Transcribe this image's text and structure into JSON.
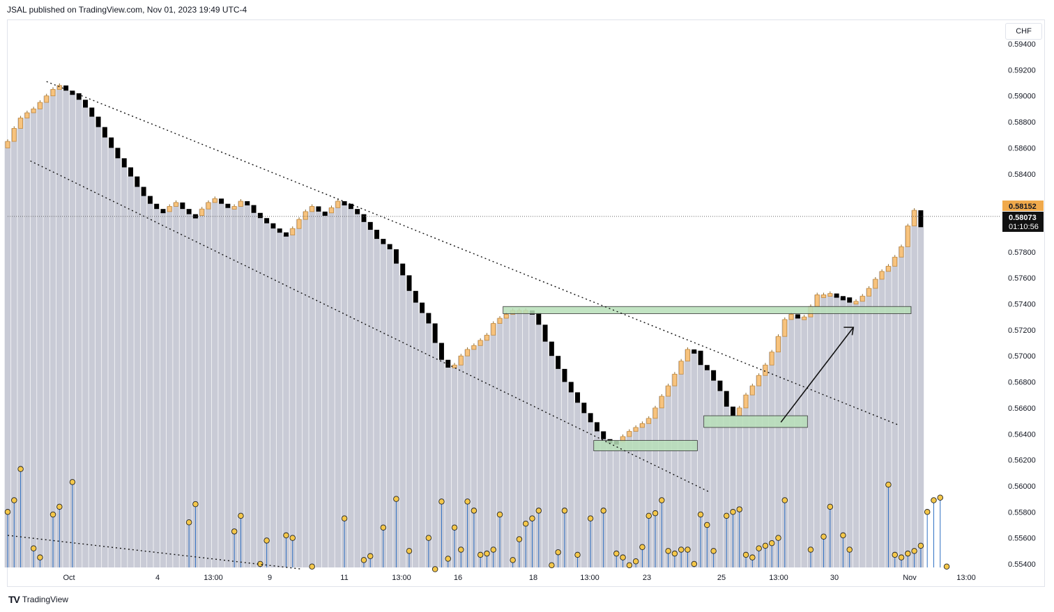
{
  "header": {
    "text": "JSAL published on TradingView.com, Nov 01, 2023 19:49 UTC-4"
  },
  "currency": "CHF",
  "footer": {
    "brand": "TradingView"
  },
  "colors": {
    "up_candle": "#f7c37e",
    "down_candle": "#000000",
    "volume": "#c9cbd6",
    "zone": "#b7dfb8",
    "dots": "#f4c74a",
    "sticks": "#2e6fc2"
  },
  "chart_data": {
    "type": "candlestick",
    "ylim": [
      0.553,
      0.595
    ],
    "y_ticks": [
      "0.59400",
      "0.59200",
      "0.59000",
      "0.58800",
      "0.58600",
      "0.58400",
      "0.58200",
      "0.58000",
      "0.57800",
      "0.57600",
      "0.57400",
      "0.57200",
      "0.57000",
      "0.56800",
      "0.56600",
      "0.56400",
      "0.56200",
      "0.56000",
      "0.55800",
      "0.55600",
      "0.55400"
    ],
    "x_ticks": [
      "Oct",
      "4",
      "13:00",
      "9",
      "11",
      "13:00",
      "16",
      "18",
      "13:00",
      "23",
      "25",
      "13:00",
      "30",
      "Nov",
      "13:00"
    ],
    "price_labels": {
      "last": "0.58152",
      "current": "0.58073",
      "countdown": "01:10:56"
    },
    "closes": [
      0.5865,
      0.5875,
      0.5883,
      0.5887,
      0.589,
      0.5895,
      0.59,
      0.5905,
      0.5908,
      0.5904,
      0.5902,
      0.5897,
      0.5891,
      0.5884,
      0.5876,
      0.5868,
      0.586,
      0.5852,
      0.5845,
      0.5838,
      0.583,
      0.5823,
      0.5817,
      0.5813,
      0.5811,
      0.5815,
      0.5818,
      0.5813,
      0.5809,
      0.5808,
      0.5813,
      0.5818,
      0.5821,
      0.5817,
      0.5814,
      0.5815,
      0.5819,
      0.5816,
      0.581,
      0.5806,
      0.5802,
      0.5798,
      0.5795,
      0.5793,
      0.5798,
      0.5805,
      0.5811,
      0.5815,
      0.5811,
      0.581,
      0.5814,
      0.5819,
      0.5817,
      0.5813,
      0.5809,
      0.5803,
      0.5797,
      0.579,
      0.5786,
      0.5782,
      0.5771,
      0.5762,
      0.575,
      0.5741,
      0.5733,
      0.5725,
      0.571,
      0.5697,
      0.5691,
      0.5693,
      0.57,
      0.5705,
      0.5708,
      0.5712,
      0.5716,
      0.5725,
      0.5729,
      0.5732,
      0.5735,
      0.5735,
      0.5735,
      0.5733,
      0.5724,
      0.5711,
      0.57,
      0.569,
      0.568,
      0.5672,
      0.5664,
      0.5656,
      0.5649,
      0.5642,
      0.5636,
      0.5635,
      0.5634,
      0.5638,
      0.5642,
      0.5645,
      0.5648,
      0.5652,
      0.566,
      0.5669,
      0.5677,
      0.5686,
      0.5696,
      0.5705,
      0.5704,
      0.5693,
      0.5689,
      0.5681,
      0.5673,
      0.5661,
      0.5654,
      0.566,
      0.567,
      0.5677,
      0.5685,
      0.5693,
      0.5703,
      0.5715,
      0.5728,
      0.5732,
      0.573,
      0.573,
      0.5738,
      0.5747,
      0.5747,
      0.5748,
      0.5746,
      0.5745,
      0.5741,
      0.5742,
      0.5746,
      0.5752,
      0.5759,
      0.5765,
      0.5769,
      0.5776,
      0.5784,
      0.58,
      0.5812,
      0.5799
    ],
    "dots": [
      {
        "i": 0,
        "v": 0.558
      },
      {
        "i": 1,
        "v": 0.5589
      },
      {
        "i": 2,
        "v": 0.5613
      },
      {
        "i": 4,
        "v": 0.5552
      },
      {
        "i": 5,
        "v": 0.5545
      },
      {
        "i": 7,
        "v": 0.5578
      },
      {
        "i": 8,
        "v": 0.5584
      },
      {
        "i": 10,
        "v": 0.5603
      },
      {
        "i": 28,
        "v": 0.5572
      },
      {
        "i": 29,
        "v": 0.5586
      },
      {
        "i": 35,
        "v": 0.5565
      },
      {
        "i": 36,
        "v": 0.5577
      },
      {
        "i": 39,
        "v": 0.554
      },
      {
        "i": 40,
        "v": 0.5558
      },
      {
        "i": 43,
        "v": 0.5562
      },
      {
        "i": 44,
        "v": 0.556
      },
      {
        "i": 47,
        "v": 0.5538
      },
      {
        "i": 52,
        "v": 0.5575
      },
      {
        "i": 55,
        "v": 0.5543
      },
      {
        "i": 56,
        "v": 0.5546
      },
      {
        "i": 58,
        "v": 0.5568
      },
      {
        "i": 60,
        "v": 0.559
      },
      {
        "i": 62,
        "v": 0.555
      },
      {
        "i": 65,
        "v": 0.556
      },
      {
        "i": 66,
        "v": 0.5536
      },
      {
        "i": 67,
        "v": 0.5588
      },
      {
        "i": 68,
        "v": 0.5544
      },
      {
        "i": 69,
        "v": 0.5568
      },
      {
        "i": 70,
        "v": 0.5551
      },
      {
        "i": 71,
        "v": 0.5588
      },
      {
        "i": 72,
        "v": 0.5581
      },
      {
        "i": 73,
        "v": 0.5547
      },
      {
        "i": 74,
        "v": 0.5548
      },
      {
        "i": 75,
        "v": 0.5551
      },
      {
        "i": 76,
        "v": 0.5578
      },
      {
        "i": 78,
        "v": 0.5543
      },
      {
        "i": 79,
        "v": 0.5559
      },
      {
        "i": 80,
        "v": 0.5571
      },
      {
        "i": 81,
        "v": 0.5575
      },
      {
        "i": 82,
        "v": 0.5581
      },
      {
        "i": 84,
        "v": 0.5539
      },
      {
        "i": 85,
        "v": 0.5549
      },
      {
        "i": 86,
        "v": 0.5581
      },
      {
        "i": 88,
        "v": 0.5547
      },
      {
        "i": 90,
        "v": 0.5575
      },
      {
        "i": 92,
        "v": 0.5581
      },
      {
        "i": 94,
        "v": 0.5548
      },
      {
        "i": 95,
        "v": 0.5545
      },
      {
        "i": 96,
        "v": 0.5539
      },
      {
        "i": 97,
        "v": 0.5542
      },
      {
        "i": 98,
        "v": 0.5553
      },
      {
        "i": 99,
        "v": 0.5577
      },
      {
        "i": 100,
        "v": 0.5579
      },
      {
        "i": 101,
        "v": 0.5589
      },
      {
        "i": 102,
        "v": 0.555
      },
      {
        "i": 103,
        "v": 0.5548
      },
      {
        "i": 104,
        "v": 0.5551
      },
      {
        "i": 105,
        "v": 0.5551
      },
      {
        "i": 106,
        "v": 0.554
      },
      {
        "i": 107,
        "v": 0.5578
      },
      {
        "i": 108,
        "v": 0.557
      },
      {
        "i": 109,
        "v": 0.555
      },
      {
        "i": 111,
        "v": 0.5577
      },
      {
        "i": 112,
        "v": 0.558
      },
      {
        "i": 113,
        "v": 0.5582
      },
      {
        "i": 114,
        "v": 0.5547
      },
      {
        "i": 115,
        "v": 0.5545
      },
      {
        "i": 116,
        "v": 0.5552
      },
      {
        "i": 117,
        "v": 0.5554
      },
      {
        "i": 118,
        "v": 0.5556
      },
      {
        "i": 119,
        "v": 0.556
      },
      {
        "i": 120,
        "v": 0.5589
      },
      {
        "i": 124,
        "v": 0.5551
      },
      {
        "i": 126,
        "v": 0.5561
      },
      {
        "i": 127,
        "v": 0.5584
      },
      {
        "i": 129,
        "v": 0.5562
      },
      {
        "i": 130,
        "v": 0.5551
      },
      {
        "i": 136,
        "v": 0.5601
      },
      {
        "i": 137,
        "v": 0.5547
      },
      {
        "i": 138,
        "v": 0.5545
      },
      {
        "i": 139,
        "v": 0.5548
      },
      {
        "i": 140,
        "v": 0.555
      },
      {
        "i": 141,
        "v": 0.5554
      },
      {
        "i": 142,
        "v": 0.558
      },
      {
        "i": 143,
        "v": 0.5589
      },
      {
        "i": 144,
        "v": 0.5591
      },
      {
        "i": 145,
        "v": 0.5538
      }
    ],
    "zones": [
      {
        "from_i": 84.5,
        "to_i": 99.5,
        "top": 0.5735,
        "bottom": 0.5733
      },
      {
        "from_i": 0,
        "to_i": 0,
        "top": 0,
        "bottom": 0
      }
    ],
    "trendlines": [
      {
        "from": [
          6.5,
          0.5911
        ],
        "to": [
          130,
          0.5647
        ]
      },
      {
        "from": [
          3.5,
          0.585
        ],
        "to": [
          107.5,
          0.5595
        ]
      }
    ]
  }
}
